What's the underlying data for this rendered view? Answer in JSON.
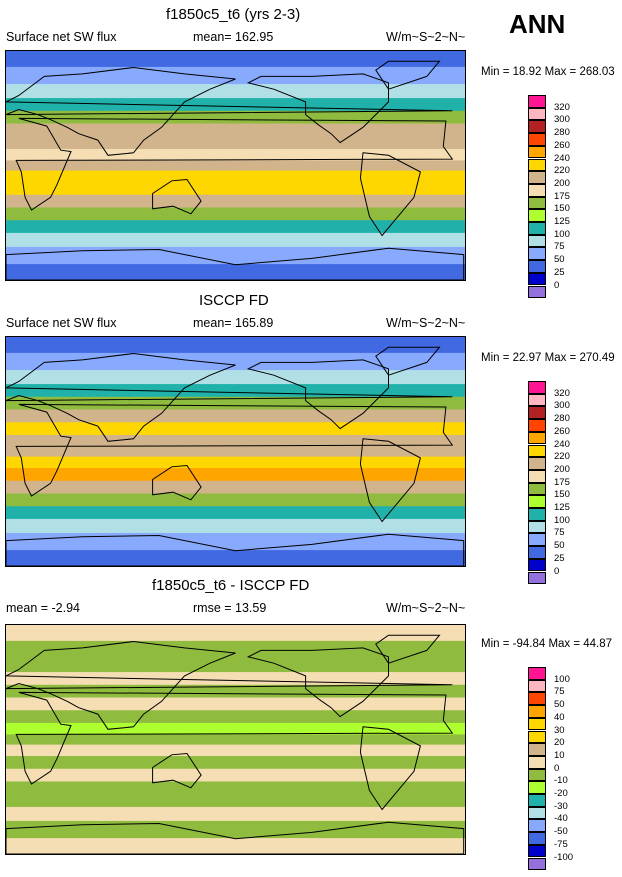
{
  "season": "ANN",
  "panels": [
    {
      "title": "f1850c5_t6 (yrs 2-3)",
      "left_label": "Surface net SW flux",
      "center_label": "mean= 162.95",
      "right_label": "W/m~S~2~N~",
      "minmax": "Min = 18.92 Max = 268.03"
    },
    {
      "title": "ISCCP FD",
      "left_label": "Surface net SW flux",
      "center_label": "mean= 165.89",
      "right_label": "W/m~S~2~N~",
      "minmax": "Min = 22.97 Max = 270.49"
    },
    {
      "title": "f1850c5_t6 - ISCCP FD",
      "left_label": "mean = -2.94",
      "center_label": "rmse = 13.59",
      "right_label": "W/m~S~2~N~",
      "minmax": "Min = -94.84 Max = 44.87"
    }
  ],
  "colorbars": {
    "flux": {
      "labels": [
        "320",
        "300",
        "280",
        "260",
        "240",
        "220",
        "200",
        "175",
        "150",
        "125",
        "100",
        "75",
        "50",
        "25",
        "0"
      ],
      "colors": [
        "#ff1493",
        "#ffb6c1",
        "#b22222",
        "#ff4500",
        "#ffa500",
        "#ffd700",
        "#d2b48c",
        "#f5deb3",
        "#8fbc3f",
        "#adff2f",
        "#20b2aa",
        "#b0e0e6",
        "#87aaff",
        "#4169e1",
        "#0000cd",
        "#9370db"
      ]
    },
    "diff": {
      "labels": [
        "100",
        "75",
        "50",
        "40",
        "30",
        "20",
        "10",
        "0",
        "-10",
        "-20",
        "-30",
        "-40",
        "-50",
        "-75",
        "-100"
      ],
      "colors": [
        "#ff1493",
        "#ffb6c1",
        "#ff4500",
        "#ffa500",
        "#ffd700",
        "#ffd700",
        "#d2b48c",
        "#f5deb3",
        "#8fbc3f",
        "#adff2f",
        "#20b2aa",
        "#b0e0e6",
        "#87aaff",
        "#4169e1",
        "#0000cd",
        "#9370db"
      ]
    }
  },
  "chart_data": [
    {
      "type": "heatmap",
      "title": "f1850c5_t6 (yrs 2-3)",
      "variable": "Surface net SW flux",
      "units": "W/m~S~2~N~",
      "mean": 162.95,
      "min": 18.92,
      "max": 268.03,
      "zonal_band_values": [
        {
          "lat": 85,
          "value": 40
        },
        {
          "lat": 70,
          "value": 60
        },
        {
          "lat": 58,
          "value": 80
        },
        {
          "lat": 48,
          "value": 110
        },
        {
          "lat": 38,
          "value": 160
        },
        {
          "lat": 28,
          "value": 200
        },
        {
          "lat": 18,
          "value": 215
        },
        {
          "lat": 8,
          "value": 190
        },
        {
          "lat": 0,
          "value": 200
        },
        {
          "lat": -8,
          "value": 225
        },
        {
          "lat": -18,
          "value": 235
        },
        {
          "lat": -28,
          "value": 200
        },
        {
          "lat": -38,
          "value": 160
        },
        {
          "lat": -48,
          "value": 110
        },
        {
          "lat": -58,
          "value": 80
        },
        {
          "lat": -70,
          "value": 50
        },
        {
          "lat": -85,
          "value": 25
        }
      ]
    },
    {
      "type": "heatmap",
      "title": "ISCCP FD",
      "variable": "Surface net SW flux",
      "units": "W/m~S~2~N~",
      "mean": 165.89,
      "min": 22.97,
      "max": 270.49,
      "zonal_band_values": [
        {
          "lat": 85,
          "value": 40
        },
        {
          "lat": 70,
          "value": 60
        },
        {
          "lat": 58,
          "value": 90
        },
        {
          "lat": 48,
          "value": 120
        },
        {
          "lat": 38,
          "value": 165
        },
        {
          "lat": 28,
          "value": 210
        },
        {
          "lat": 18,
          "value": 225
        },
        {
          "lat": 8,
          "value": 200
        },
        {
          "lat": 0,
          "value": 215
        },
        {
          "lat": -8,
          "value": 235
        },
        {
          "lat": -18,
          "value": 240
        },
        {
          "lat": -28,
          "value": 205
        },
        {
          "lat": -38,
          "value": 165
        },
        {
          "lat": -48,
          "value": 115
        },
        {
          "lat": -58,
          "value": 85
        },
        {
          "lat": -70,
          "value": 50
        },
        {
          "lat": -85,
          "value": 25
        }
      ]
    },
    {
      "type": "heatmap",
      "title": "f1850c5_t6 - ISCCP FD",
      "units": "W/m~S~2~N~",
      "mean": -2.94,
      "rmse": 13.59,
      "min": -94.84,
      "max": 44.87,
      "zonal_band_values": [
        {
          "lat": 85,
          "value": 5
        },
        {
          "lat": 70,
          "value": -5
        },
        {
          "lat": 58,
          "value": -5
        },
        {
          "lat": 48,
          "value": 5
        },
        {
          "lat": 38,
          "value": -5
        },
        {
          "lat": 28,
          "value": 5
        },
        {
          "lat": 18,
          "value": -5
        },
        {
          "lat": 8,
          "value": -15
        },
        {
          "lat": 0,
          "value": -5
        },
        {
          "lat": -8,
          "value": 5
        },
        {
          "lat": -18,
          "value": -5
        },
        {
          "lat": -28,
          "value": 5
        },
        {
          "lat": -38,
          "value": -5
        },
        {
          "lat": -48,
          "value": -5
        },
        {
          "lat": -58,
          "value": 5
        },
        {
          "lat": -70,
          "value": -5
        },
        {
          "lat": -85,
          "value": 5
        }
      ]
    }
  ]
}
